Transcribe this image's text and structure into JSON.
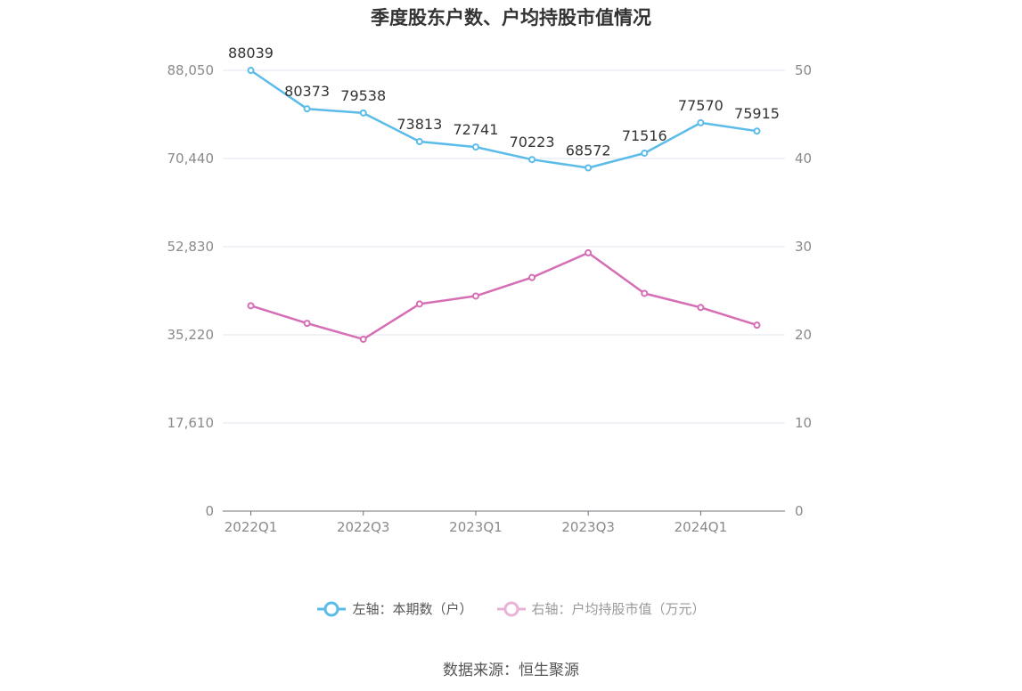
{
  "chart_data": {
    "type": "line",
    "title": "季度股东户数、户均持股市值情况",
    "categories": [
      "2022Q1",
      "2022Q2",
      "2022Q3",
      "2022Q4",
      "2023Q1",
      "2023Q2",
      "2023Q3",
      "2023Q4",
      "2024Q1",
      "2024Q2"
    ],
    "x_tick_labels": [
      "2022Q1",
      "2022Q3",
      "2023Q1",
      "2023Q3",
      "2024Q1"
    ],
    "left_axis": {
      "ylim": [
        0,
        88050
      ],
      "ticks": [
        "0",
        "17,610",
        "35,220",
        "52,830",
        "70,440",
        "88,050"
      ]
    },
    "right_axis": {
      "ylim": [
        0,
        50
      ],
      "ticks": [
        "0",
        "10",
        "20",
        "30",
        "40",
        "50"
      ]
    },
    "series": [
      {
        "name": "左轴：本期数（户）",
        "axis": "left",
        "color": "#5bbbe9",
        "values": [
          88039,
          80373,
          79538,
          73813,
          72741,
          70223,
          68572,
          71516,
          77570,
          75915
        ],
        "data_labels": [
          "88039",
          "80373",
          "79538",
          "73813",
          "72741",
          "70223",
          "68572",
          "71516",
          "77570",
          "75915"
        ]
      },
      {
        "name": "右轴：户均持股市值（万元）",
        "axis": "right",
        "color": "#d56eb4",
        "values": [
          23.3,
          21.3,
          19.5,
          23.5,
          24.4,
          26.5,
          29.3,
          24.7,
          23.1,
          21.1
        ]
      }
    ],
    "grid": true,
    "legend_position": "bottom-center"
  },
  "legend": {
    "left_label": "左轴：本期数（户）",
    "right_label": "右轴：户均持股市值（万元）"
  },
  "source": "数据来源：恒生聚源"
}
